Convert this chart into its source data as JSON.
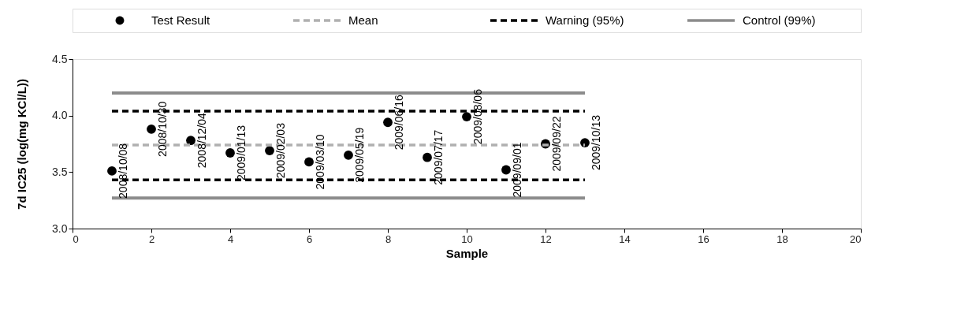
{
  "chart_data": {
    "type": "scatter",
    "xlabel": "Sample",
    "ylabel": "7d IC25 (log(mg KCl/L))",
    "xlim": [
      0,
      20
    ],
    "xticks": [
      0,
      2,
      4,
      6,
      8,
      10,
      12,
      14,
      16,
      18,
      20
    ],
    "ylim": [
      3,
      4.5
    ],
    "yticks": [
      {
        "value": 3,
        "label": "3.0"
      },
      {
        "value": 3.5,
        "label": "3.5"
      },
      {
        "value": 4,
        "label": "4.0"
      },
      {
        "value": 4.5,
        "label": "4.5"
      }
    ],
    "grid": false,
    "legend": "top",
    "series": [
      {
        "name": "Test Result",
        "marker": "circle",
        "color": "#000000",
        "x": [
          1,
          2,
          3,
          4,
          5,
          6,
          7,
          8,
          9,
          10,
          11,
          12,
          13
        ],
        "values": [
          3.51,
          3.88,
          3.78,
          3.67,
          3.69,
          3.59,
          3.65,
          3.94,
          3.63,
          3.99,
          3.52,
          3.75,
          3.76
        ]
      },
      {
        "name": "Mean",
        "type": "line",
        "line_style": "dashed",
        "color": "#b0b0b0",
        "x": [
          1,
          13
        ],
        "values": [
          3.74,
          3.74
        ]
      },
      {
        "name": "Warning (95%)",
        "type": "line",
        "line_style": "dashed",
        "color": "#000000",
        "x": [
          1,
          13
        ],
        "values": [
          4.04,
          4.04
        ]
      },
      {
        "type": "line",
        "line_style": "dashed",
        "color": "#000000",
        "x": [
          1,
          13
        ],
        "values": [
          3.43,
          3.43
        ]
      },
      {
        "name": "Control (99%)",
        "type": "line",
        "line_style": "solid",
        "color": "#8c8c8c",
        "x": [
          1,
          13
        ],
        "values": [
          4.2,
          4.2
        ]
      },
      {
        "type": "line",
        "line_style": "solid",
        "color": "#8c8c8c",
        "x": [
          1,
          13
        ],
        "values": [
          3.27,
          3.27
        ]
      }
    ],
    "annotations": [
      {
        "text": "2008/10/08",
        "x": 1,
        "y": 3.51
      },
      {
        "text": "2008/10/30",
        "x": 2,
        "y": 3.88
      },
      {
        "text": "2008/12/04",
        "x": 3,
        "y": 3.78
      },
      {
        "text": "2009/01/13",
        "x": 4,
        "y": 3.67
      },
      {
        "text": "2009/02/03",
        "x": 5,
        "y": 3.69
      },
      {
        "text": "2009/03/10",
        "x": 6,
        "y": 3.59
      },
      {
        "text": "2009/05/19",
        "x": 7,
        "y": 3.65
      },
      {
        "text": "2009/06/16",
        "x": 8,
        "y": 3.94
      },
      {
        "text": "2009/07/17",
        "x": 9,
        "y": 3.63
      },
      {
        "text": "2009/08/06",
        "x": 10,
        "y": 3.99
      },
      {
        "text": "2009/09/01",
        "x": 11,
        "y": 3.52
      },
      {
        "text": "2009/09/22",
        "x": 12,
        "y": 3.75
      },
      {
        "text": "2009/10/13",
        "x": 13,
        "y": 3.76
      }
    ]
  }
}
